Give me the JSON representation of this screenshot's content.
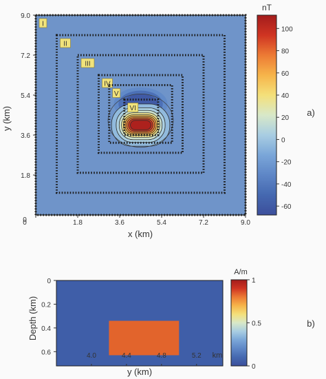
{
  "figure_labels": {
    "a": "a)",
    "b": "b)"
  },
  "colors": {
    "background": "#6f94c9",
    "frame": "#1f1f1f",
    "block": "#e2642c",
    "section_background": "#3f5ea8",
    "colormap": [
      "#3c4f9c",
      "#4568b0",
      "#5e86c6",
      "#7aa6d8",
      "#a8cde2",
      "#d8e8c8",
      "#f4e07a",
      "#f6b44a",
      "#ec7a34",
      "#cf3422",
      "#a31c1c"
    ]
  },
  "chart_data": [
    {
      "id": "a",
      "type": "heatmap",
      "title": "",
      "xlabel": "x (km)",
      "ylabel": "y (km)",
      "xlim": [
        0,
        9.0
      ],
      "ylim": [
        0,
        9.0
      ],
      "x_ticks": [
        "0",
        "1.8",
        "3.6",
        "5.4",
        "7.2",
        "9.0"
      ],
      "y_ticks": [
        "0",
        "1.8",
        "3.6",
        "5.4",
        "7.2",
        "9.0"
      ],
      "colorbar": {
        "unit": "nT",
        "range": [
          -68,
          112
        ],
        "ticks": [
          "100",
          "80",
          "60",
          "40",
          "20",
          "0",
          "-20",
          "-40",
          "-60"
        ]
      },
      "field_background_nT": -20,
      "anomaly": {
        "center": [
          4.5,
          4.05
        ],
        "positive_peak_nT": 112,
        "negative_peak_nT": -68,
        "negative_lobe_center": [
          4.5,
          5.0
        ]
      },
      "profiles": [
        {
          "label": "I",
          "x": [
            0.0,
            9.0
          ],
          "y": [
            0.0,
            9.0
          ]
        },
        {
          "label": "II",
          "x": [
            0.9,
            8.1
          ],
          "y": [
            1.0,
            8.1
          ]
        },
        {
          "label": "III",
          "x": [
            1.8,
            7.2
          ],
          "y": [
            1.9,
            7.2
          ]
        },
        {
          "label": "IV",
          "x": [
            2.7,
            6.3
          ],
          "y": [
            2.8,
            6.3
          ]
        },
        {
          "label": "V",
          "x": [
            3.15,
            5.85
          ],
          "y": [
            3.25,
            5.85
          ]
        },
        {
          "label": "VI",
          "x": [
            3.8,
            5.25
          ],
          "y": [
            3.6,
            5.2
          ]
        }
      ]
    },
    {
      "id": "b",
      "type": "heatmap",
      "title": "",
      "xlabel": "y (km)",
      "ylabel": "Depth (km)",
      "xlim": [
        3.6,
        5.5
      ],
      "ylim": [
        0.0,
        0.72
      ],
      "x_ticks": [
        "4.0",
        "4.4",
        "4.8",
        "5.2"
      ],
      "x_unit_label": "km",
      "y_ticks": [
        "0",
        "0.2",
        "0.4",
        "0.6"
      ],
      "colorbar": {
        "unit": "A/m",
        "range": [
          0,
          1
        ],
        "ticks": [
          "1",
          "0.5",
          "0"
        ]
      },
      "background_value": 0,
      "block": {
        "value": 1,
        "y": [
          4.2,
          5.0
        ],
        "depth": [
          0.34,
          0.63
        ]
      }
    }
  ]
}
